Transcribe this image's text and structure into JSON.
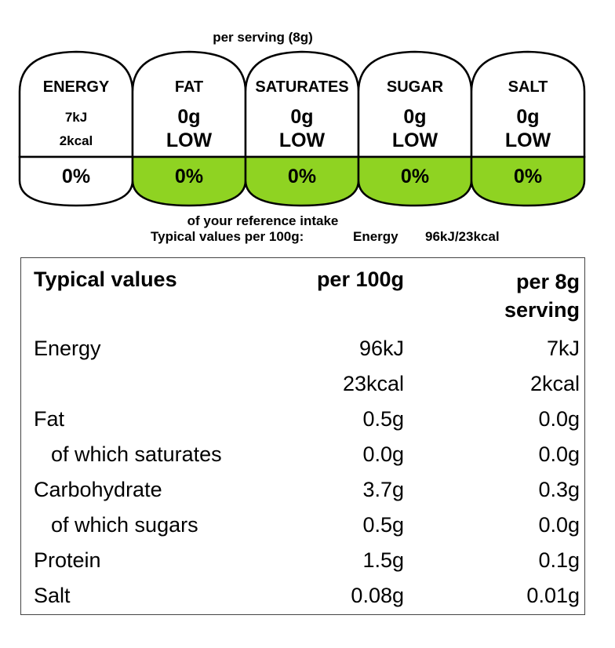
{
  "serving_header": "per serving  (8g)",
  "gda": {
    "cells": [
      {
        "name": "ENERGY",
        "value1": "7kJ",
        "value2": "2kcal",
        "percent": "0%",
        "level_color": "#ffffff"
      },
      {
        "name": "FAT",
        "value1": "0g",
        "value2": "LOW",
        "percent": "0%",
        "level_color": "#8fd322"
      },
      {
        "name": "SATURATES",
        "value1": "0g",
        "value2": "LOW",
        "percent": "0%",
        "level_color": "#8fd322"
      },
      {
        "name": "SUGAR",
        "value1": "0g",
        "value2": "LOW",
        "percent": "0%",
        "level_color": "#8fd322"
      },
      {
        "name": "SALT",
        "value1": "0g",
        "value2": "LOW",
        "percent": "0%",
        "level_color": "#8fd322"
      }
    ],
    "reference_intake": "of your reference intake",
    "typical_line": {
      "label": "Typical values per 100g:",
      "energy_label": "Energy",
      "energy_value": "96kJ/23kcal"
    }
  },
  "table": {
    "headers": {
      "label": "Typical values",
      "per100": "per 100g",
      "per_serving_line1": "per 8g",
      "per_serving_line2": "serving"
    },
    "rows": [
      {
        "label": "Energy",
        "per100": "96kJ",
        "per_serving": "7kJ",
        "indent": false
      },
      {
        "label": "",
        "per100": "23kcal",
        "per_serving": "2kcal",
        "indent": false
      },
      {
        "label": "Fat",
        "per100": "0.5g",
        "per_serving": "0.0g",
        "indent": false
      },
      {
        "label": "of which saturates",
        "per100": "0.0g",
        "per_serving": "0.0g",
        "indent": true
      },
      {
        "label": "Carbohydrate",
        "per100": "3.7g",
        "per_serving": "0.3g",
        "indent": false
      },
      {
        "label": "of which sugars",
        "per100": "0.5g",
        "per_serving": "0.0g",
        "indent": true
      },
      {
        "label": "Protein",
        "per100": "1.5g",
        "per_serving": "0.1g",
        "indent": false
      },
      {
        "label": "Salt",
        "per100": "0.08g",
        "per_serving": "0.01g",
        "indent": false
      }
    ]
  }
}
